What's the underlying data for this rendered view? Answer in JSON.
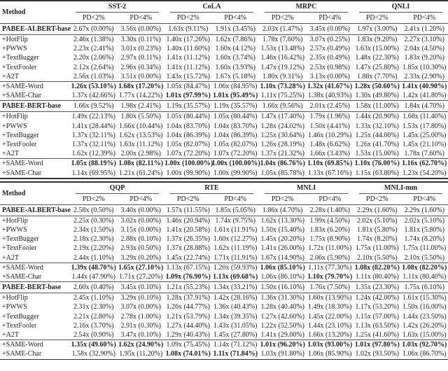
{
  "header": {
    "method_label": "Method",
    "sub_labels": [
      "PD<2%",
      "PD<4%"
    ]
  },
  "blocks": [
    {
      "datasets": [
        "SST-2",
        "CoLA",
        "MRPC",
        "QNLI"
      ],
      "models": [
        {
          "base": {
            "method": "PABEE-ALBERT-base",
            "values": [
              "2.67x (0.00%)",
              "3.56x (0.00%)",
              "1.63x (9.11%)",
              "1.91x (3.45%)",
              "2.03x (1.47%)",
              "3.45x (0.00%)",
              "1.97x (3.00%)",
              "2.41x (1.20%)"
            ]
          },
          "attacks": [
            {
              "method": "+HotFlip",
              "values": [
                "2.46x (1.38%)",
                "3.30x (0.11%)",
                "1.40x (17.26%)",
                "1.62x (7.86%)",
                "1.78x (7.60%)",
                "3.07x (0.25%)",
                "1.83x (9.20%)",
                "2.27x (3.10%)"
              ]
            },
            {
              "method": "+PWWS",
              "values": [
                "2.23x (2.41%)",
                "3.01x (0.23%)",
                "1.40x (11.60%)",
                "1.60x (4.12%)",
                "1.53x (13.48%)",
                "2.57x (0.49%)",
                "1.63x (15.00%)",
                "2.04x (4.50%)"
              ]
            },
            {
              "method": "+TextBugger",
              "values": [
                "2.20x (2.06%)",
                "2.97x (0.11%)",
                "1.41x (11.12%)",
                "1.60x (3.74%)",
                "1.46x (16.42%)",
                "2.35x (0.49%)",
                "1.48x (22.30%)",
                "1.83x (9.20%)"
              ]
            },
            {
              "method": "+TextFooler",
              "values": [
                "2.12x (2.64%)",
                "2.96x (0.34%)",
                "1.41x (11.12%)",
                "1.60x (3.93%)",
                "1.47x (19.12%)",
                "2.53x (0.98%)",
                "1.47x (25.80%)",
                "1.85x (10.30%)"
              ]
            },
            {
              "method": "+A2T",
              "values": [
                "2.56x (1.03%)",
                "3.51x (0.00%)",
                "1.43x (15.72%)",
                "1.67x (5.18%)",
                "1.80x (9.31%)",
                "3.13x (0.00%)",
                "1.88x (7.70%)",
                "2.33x (2.90%)"
              ]
            }
          ],
          "same": [
            {
              "method": "+SAME-Word",
              "values": [
                "1.26x (53.10%)",
                "1.68x (17.20%)",
                "1.05x (84.47%)",
                "1.06x (84.95%)",
                "1.10x (73.28%)",
                "1.32x (41.67%)",
                "1.28x (50.60%)",
                "1.41x (40.90%)"
              ],
              "bold": [
                0,
                1,
                4,
                5,
                6,
                7
              ]
            },
            {
              "method": "+SAME-Char",
              "values": [
                "1.37x (42.66%)",
                "1.77x (14.22%)",
                "1.01x (97.99%)",
                "1.01x (95.49%)",
                "1.11x (75.25%)",
                "1.38x (40.93%)",
                "1.30x (49.80%)",
                "1.42x (41.80%)"
              ],
              "bold": [
                2,
                3
              ]
            }
          ]
        },
        {
          "base": {
            "method": "PABEE-BERT-base",
            "values": [
              "1.66x (9.52%)",
              "1.98x (2.41%)",
              "1.19x (35.57%)",
              "1.19x (35.57%)",
              "1.66x (9.56%)",
              "2.01x (2.45%)",
              "1.58x (11.00%)",
              "1.84x (4.70%)"
            ]
          },
          "attacks": [
            {
              "method": "+HotFlip",
              "values": [
                "1.49x (22.13%)",
                "1.80x (5.50%)",
                "1.05x (80.44%)",
                "1.05x (80.44%)",
                "1.47x (17.40%)",
                "1.79x (1.96%)",
                "1.44x (20.90%)",
                "1.68x (11.40%)"
              ]
            },
            {
              "method": "+PWWS",
              "values": [
                "1.41x (28.44%)",
                "1.66x (10.44%)",
                "1.04x (83.70%)",
                "1.04x (83.70%)",
                "1.28x (24.02%)",
                "1.50x (4.41%)",
                "1.33x (32.10%)",
                "1.53x (17.80%)"
              ]
            },
            {
              "method": "+TextBugger",
              "values": [
                "1.37x (32.11%)",
                "1.62x (13.53%)",
                "1.04x (86.39%)",
                "1.04x (86.39%)",
                "1.25x (30.64%)",
                "1.46x (10.29%)",
                "1.25x (44.00%)",
                "1.45x (25.00%)"
              ]
            },
            {
              "method": "+TextFooler",
              "values": [
                "1.37x (32.11%)",
                "1.63x (11.12%)",
                "1.05x (82.07%)",
                "1.05x (82.07%)",
                "1.26x (28.19%)",
                "1.48x (6.62%)",
                "1.26x (41.70%)",
                "1.45x (21.10%)"
              ]
            },
            {
              "method": "+A2T",
              "values": [
                "1.62x (12.39%)",
                "2.00x (2.98%)",
                "1.07x (72.20%)",
                "1.07x (72.20%)",
                "1.37x (21.32%)",
                "1.66x (3.43%)",
                "1.53x (15.00%)",
                "1.78x (7.60%)"
              ]
            }
          ],
          "same": [
            {
              "method": "+SAME-Word",
              "values": [
                "1.05x (88.19%)",
                "1.08x (82.11%)",
                "1.00x (100.00%)",
                "1.00x (100.00%)",
                "1.04x (86.76%)",
                "1.10x (69.85%)",
                "1.10x (76.00%)",
                "1.16x (62.70%)"
              ],
              "bold": [
                0,
                1,
                2,
                3,
                4,
                5,
                6,
                7
              ]
            },
            {
              "method": "+SAME-Char",
              "values": [
                "1.14x (69.95%)",
                "1.21x (61.24%)",
                "1.00x (99.90%)",
                "1.00x (99.90%)",
                "1.05x (85.78%)",
                "1.13x (67.16%)",
                "1.15x (63.80%)",
                "1.23x (54.20%)"
              ],
              "bold": []
            }
          ]
        }
      ]
    },
    {
      "datasets": [
        "QQP",
        "RTE",
        "MNLI",
        "MNLI-mm"
      ],
      "models": [
        {
          "base": {
            "method": "PABEE-ALBERT-base",
            "values": [
              "2.58x (0.50%)",
              "3.40x (0.00%)",
              "1.57x (11.55%)",
              "1.85x (5.05%)",
              "1.86x (4.70%)",
              "2.28x (1.40%)",
              "2.29x (1.60%)",
              "2.29x (1.60%)"
            ]
          },
          "attacks": [
            {
              "method": "+HotFlip",
              "values": [
                "2.25x (0.30%)",
                "3.02x (0.00%)",
                "1.46x (20.94%)",
                "1.74x (9.75%)",
                "1.62x (13.30%)",
                "1.99x (4.50%)",
                "2.02x (5.10%)",
                "2.02x (5.10%)"
              ]
            },
            {
              "method": "+PWWS",
              "values": [
                "2.34x (1.50%)",
                "3.15x (0.00%)",
                "1.41x (20.58%)",
                "1.61x (11.91%)",
                "1.50x (15.40%)",
                "1.83x (6.20%)",
                "1.81x (5.80%)",
                "1.81x (5.80%)"
              ]
            },
            {
              "method": "+TextBugger",
              "values": [
                "2.18x (2.30%)",
                "2.88x (0.10%)",
                "1.37x (26.35%)",
                "1.60x (12.27%)",
                "1.45x (20.20%)",
                "1.75x (8.90%)",
                "1.74x (8.20%)",
                "1.74x (8.20%)"
              ]
            },
            {
              "method": "+TextFooler",
              "values": [
                "2.19x (2.20%)",
                "2.93x (0.50%)",
                "1.37x (28.88%)",
                "1.62x (11.19%)",
                "1.41x (26.00%)",
                "1.72x (11.00%)",
                "1.75x (11.00%)",
                "1.75x (11.00%)"
              ]
            },
            {
              "method": "+A2T",
              "values": [
                "2.44x (1.10%)",
                "3.29x (0.20%)",
                "1.45x (22.74%)",
                "1.71x (11.91%)",
                "1.67x (14.90%)",
                "2.06x (5.90%)",
                "2.10x (5.50%)",
                "2.10x (5.50%)"
              ]
            }
          ],
          "same": [
            {
              "method": "+SAME-Word",
              "values": [
                "1.39x (48.70%)",
                "1.65x (27.10%)",
                "1.13x (67.15%)",
                "1.20x (59.93%)",
                "1.06x (85.10%)",
                "1.11x (77.30%)",
                "1.08x (82.20%)",
                "1.08x (82.20%)"
              ],
              "bold": [
                0,
                1,
                4,
                6,
                7
              ]
            },
            {
              "method": "+SAME-Char",
              "values": [
                "1.44x (47.90%)",
                "1.71x (27.20%)",
                "1.09x (76.90%)",
                "1.13x (69.68%)",
                "1.06x (86.10%)",
                "1.10x (79.70%)",
                "1.11x (80.40%)",
                "1.11x (80.40%)"
              ],
              "bold": [
                2,
                3,
                5
              ]
            }
          ]
        },
        {
          "base": {
            "method": "PABEE-BERT-base",
            "values": [
              "2.60x (0.40%)",
              "3.45x (0.10%)",
              "1.21x (55.23%)",
              "1.34x (33.21%)",
              "1.50x (16.10%)",
              "1.76x (7.50%)",
              "1.35x (23.30%)",
              "1.75x (6.10%)"
            ]
          },
          "attacks": [
            {
              "method": "+HotFlip",
              "values": [
                "2.45x (1.10%)",
                "3.29x (0.10%)",
                "1.28x (37.91%)",
                "1.42x (28.16%)",
                "1.36x (31.30%)",
                "1.60x (13.90%)",
                "1.24x (42.00%)",
                "1.61x (15.30%)"
              ]
            },
            {
              "method": "+PWWS",
              "values": [
                "2.31x (2.30%)",
                "3.07x (0.00%)",
                "1.26x (44.77%)",
                "1.36x (40.43%)",
                "1.28x (40.40%)",
                "1.49x (18.30%)",
                "1.17x (53.20%)",
                "1.50x (16.00%)"
              ]
            },
            {
              "method": "+TextBugger",
              "values": [
                "2.21x (2.80%)",
                "2.78x (1.00%)",
                "1.21x (53.79%)",
                "1.34x (39.35%)",
                "1.27x (42.60%)",
                "1.45x (22.00%)",
                "1.15x (57.00%)",
                "1.44x (23.50%)"
              ]
            },
            {
              "method": "+TextFooler",
              "values": [
                "2.16x (3.70%)",
                "2.91x (0.30%)",
                "1.27x (44.40%)",
                "1.43x (31.05%)",
                "1.22x (52.50%)",
                "1.44x (23.10%)",
                "1.13x (63.50%)",
                "1.42x (26.20%)"
              ]
            },
            {
              "method": "+A2T",
              "values": [
                "2.54x (0.90%)",
                "3.47x (0.10%)",
                "1.29x (40.43%)",
                "1.45x (27.80%)",
                "1.41x (29.00%)",
                "1.66x (13.20%)",
                "1.25x (41.60%)",
                "1.63x (15.00%)"
              ]
            }
          ],
          "same": [
            {
              "method": "+SAME-Word",
              "values": [
                "1.35x (49.60%)",
                "1.62x (24.90%)",
                "1.09x (75.45%)",
                "1.14x (71.12%)",
                "1.01x (96.20%)",
                "1.03x (93.00%)",
                "1.01x (97.80%)",
                "1.03x (92.70%)"
              ],
              "bold": [
                0,
                1,
                4,
                5,
                6,
                7
              ]
            },
            {
              "method": "+SAME-Char",
              "values": [
                "1.58x (32.90%)",
                "1.95x (11.20%)",
                "1.08x (74.01%)",
                "1.11x (71.84%)",
                "1.03x (91.80%)",
                "1.06x (85.90%)",
                "1.02x (93.50%)",
                "1.06x (86.70%)"
              ],
              "bold": [
                2,
                3
              ]
            }
          ]
        }
      ]
    }
  ]
}
